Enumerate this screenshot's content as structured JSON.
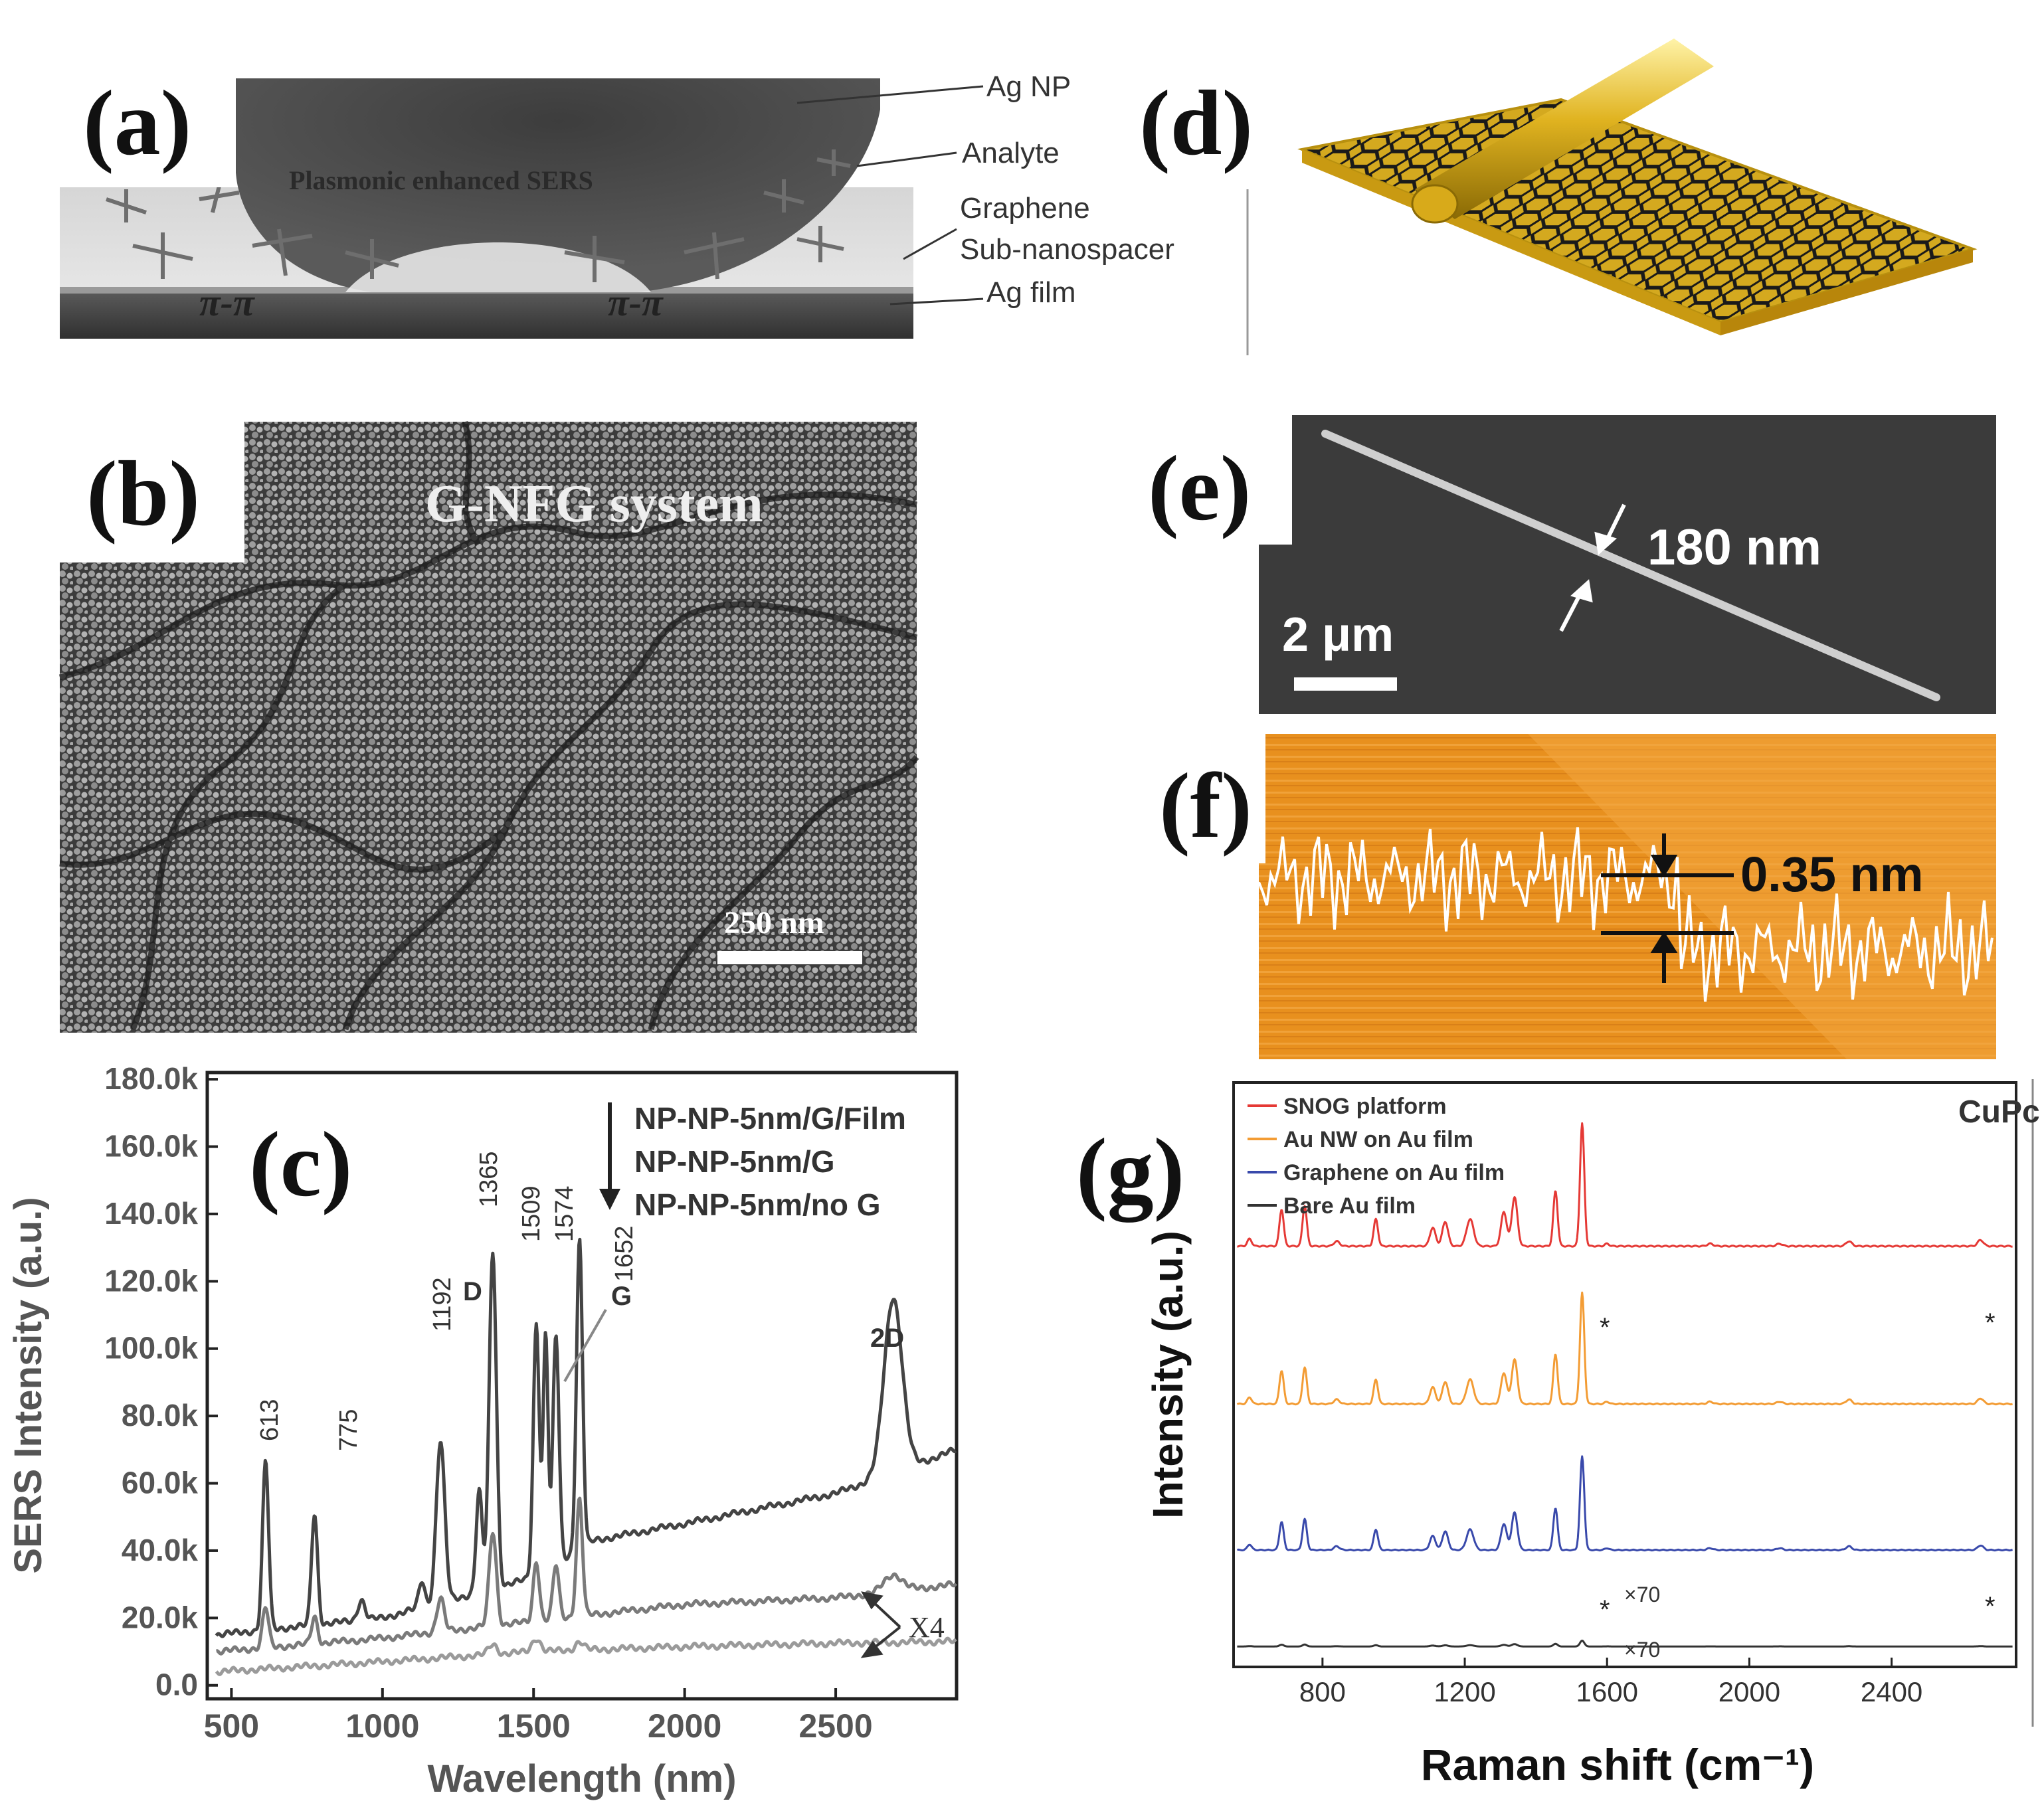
{
  "panels": {
    "a": {
      "letter": "(a)",
      "center_text": "Plasmonic enhanced SERS",
      "labels": [
        "Ag NP",
        "Analyte",
        "Graphene",
        "Sub-nanospacer",
        "Ag film"
      ],
      "pi_label": "π-π"
    },
    "b": {
      "letter": "(b)",
      "title": "G-NFG system",
      "scale": "250 nm"
    },
    "c": {
      "letter": "(c)",
      "legend": [
        "NP-NP-5nm/G/Film",
        "NP-NP-5nm/G",
        "NP-NP-5nm/no G"
      ],
      "peak_labels": [
        "613",
        "775",
        "1192",
        "1365",
        "1509",
        "1574",
        "1652"
      ],
      "band_labels": {
        "D": "D",
        "G": "G",
        "2D": "2D"
      },
      "multiplier": "X4"
    },
    "d": {
      "letter": "(d)"
    },
    "e": {
      "letter": "(e)",
      "width_label": "180 nm",
      "scale": "2 μm"
    },
    "f": {
      "letter": "(f)",
      "height_label": "0.35 nm"
    },
    "g": {
      "letter": "(g)",
      "legend": [
        "SNOG platform",
        "Au NW on Au film",
        "Graphene on Au film",
        "Bare Au film"
      ],
      "corner": "CuPc",
      "multipliers": [
        "×70",
        "×70"
      ],
      "star": "*"
    }
  },
  "chart_data": [
    {
      "type": "line",
      "panel": "c",
      "xlabel": "Wavelength (nm)",
      "ylabel": "SERS Intensity (a.u.)",
      "xlim": [
        420,
        2900
      ],
      "ylim": [
        -4000,
        182000
      ],
      "xticks": [
        "500",
        "1000",
        "1500",
        "2000",
        "2500"
      ],
      "yticks": [
        "0.0",
        "20.0k",
        "40.0k",
        "60.0k",
        "80.0k",
        "100.0k",
        "120.0k",
        "140.0k",
        "160.0k",
        "180.0k"
      ],
      "series": [
        {
          "name": "NP-NP-5nm/G/Film",
          "color": "#444444",
          "baseline": [
            [
              450,
              15000
            ],
            [
              1000,
              20000
            ],
            [
              1500,
              32000
            ],
            [
              1700,
              43000
            ],
            [
              2000,
              48000
            ],
            [
              2500,
              57000
            ],
            [
              2900,
              70000
            ]
          ],
          "peaks": [
            [
              613,
              50000,
              10
            ],
            [
              775,
              33000,
              10
            ],
            [
              930,
              6000,
              12
            ],
            [
              1130,
              8000,
              10
            ],
            [
              1192,
              48000,
              14
            ],
            [
              1320,
              30000,
              10
            ],
            [
              1365,
              100000,
              12
            ],
            [
              1509,
              75000,
              10
            ],
            [
              1540,
              70000,
              8
            ],
            [
              1574,
              68000,
              10
            ],
            [
              1652,
              92000,
              10
            ],
            [
              2690,
              52000,
              30
            ]
          ]
        },
        {
          "name": "NP-NP-5nm/G",
          "color": "#7a7a7a",
          "baseline": [
            [
              450,
              10000
            ],
            [
              1000,
              14000
            ],
            [
              1500,
              19000
            ],
            [
              2000,
              24000
            ],
            [
              2500,
              26000
            ],
            [
              2900,
              30000
            ]
          ],
          "peaks": [
            [
              613,
              12000,
              10
            ],
            [
              775,
              8000,
              10
            ],
            [
              1192,
              10000,
              12
            ],
            [
              1365,
              28000,
              12
            ],
            [
              1509,
              18000,
              10
            ],
            [
              1574,
              16000,
              10
            ],
            [
              1652,
              35000,
              10
            ],
            [
              2690,
              5000,
              30
            ]
          ]
        },
        {
          "name": "NP-NP-5nm/no G",
          "color": "#9a9a9a",
          "baseline": [
            [
              450,
              4000
            ],
            [
              1000,
              7000
            ],
            [
              1500,
              10000
            ],
            [
              2000,
              11500
            ],
            [
              2500,
              12500
            ],
            [
              2900,
              13000
            ]
          ],
          "peaks": [
            [
              1365,
              3000,
              14
            ],
            [
              1509,
              4000,
              14
            ],
            [
              1652,
              2500,
              14
            ]
          ]
        }
      ]
    },
    {
      "type": "line",
      "panel": "g",
      "xlabel": "Raman shift (cm⁻¹)",
      "ylabel": "Intensity (a.u.)",
      "xlim": [
        550,
        2750
      ],
      "xticks": [
        "800",
        "1200",
        "1600",
        "2000",
        "2400"
      ],
      "series": [
        {
          "name": "SNOG platform",
          "color": "#e53935",
          "offset": 0.72,
          "scale": 0.21
        },
        {
          "name": "Au NW on Au film",
          "color": "#f39c34",
          "offset": 0.45,
          "scale": 0.19
        },
        {
          "name": "Graphene on Au film",
          "color": "#3949ab",
          "offset": 0.2,
          "scale": 0.16
        },
        {
          "name": "Bare Au film",
          "color": "#333333",
          "offset": 0.035,
          "scale": 0.01
        }
      ],
      "peaks": [
        [
          595,
          0.06,
          6
        ],
        [
          685,
          0.3,
          6
        ],
        [
          750,
          0.33,
          6
        ],
        [
          840,
          0.04,
          8
        ],
        [
          950,
          0.22,
          6
        ],
        [
          1110,
          0.15,
          8
        ],
        [
          1145,
          0.2,
          8
        ],
        [
          1215,
          0.22,
          10
        ],
        [
          1310,
          0.28,
          8
        ],
        [
          1340,
          0.4,
          8
        ],
        [
          1455,
          0.45,
          6
        ],
        [
          1530,
          1.0,
          6
        ],
        [
          1600,
          0.02,
          6
        ],
        [
          1890,
          0.02,
          8
        ],
        [
          2085,
          0.02,
          8
        ],
        [
          2280,
          0.04,
          8
        ],
        [
          2650,
          0.05,
          8
        ]
      ]
    }
  ]
}
